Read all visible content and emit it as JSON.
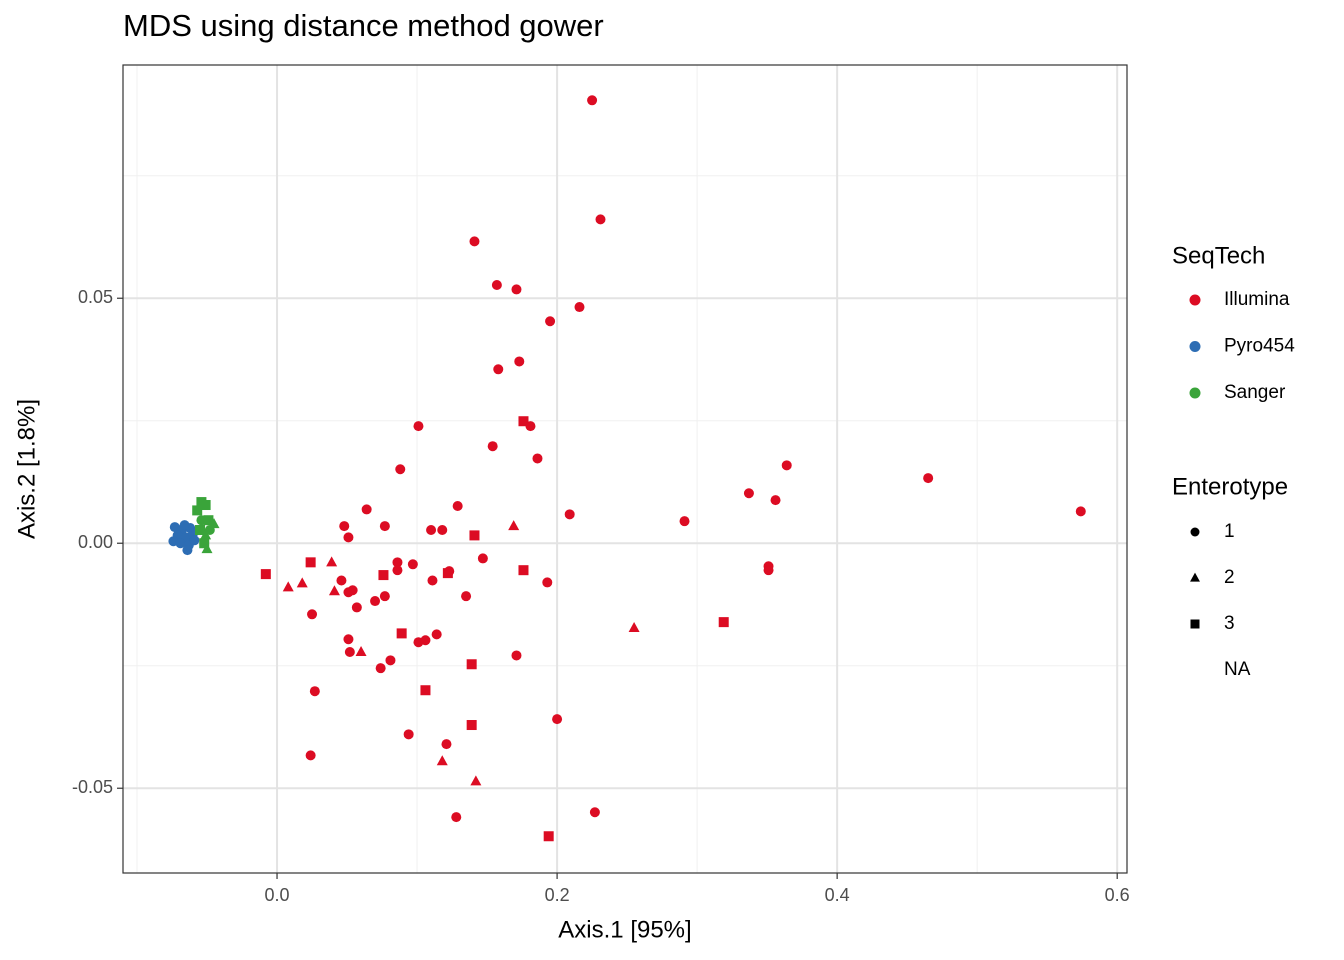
{
  "chart_data": {
    "type": "scatter",
    "title": "MDS using distance method gower",
    "x_label": "Axis.1   [95%]",
    "y_label": "Axis.2   [1.8%]",
    "xlim": [
      -0.11,
      0.607
    ],
    "ylim": [
      -0.0673,
      0.0976
    ],
    "xticks": [
      {
        "value": 0,
        "label": "0.0"
      },
      0.2,
      0.4,
      0.6
    ],
    "yticks": [
      -0.05,
      {
        "value": 0,
        "label": "0.00"
      },
      0.05
    ],
    "x_minor_grid": [
      -0.1,
      0.1,
      0.3,
      0.5
    ],
    "y_minor_grid": [
      -0.025,
      0.025,
      0.075
    ],
    "grid": true,
    "legend_title": "SeqTech",
    "shape_legend": {
      "title": "Enterotype",
      "labels": [
        "1",
        "2",
        "3",
        "NA"
      ],
      "shapes": [
        "circle",
        "triangle",
        "square",
        null
      ]
    },
    "series": [
      {
        "name": "Illumina",
        "color": "#dc0c23",
        "x": [
          0.225,
          0.231,
          0.141,
          0.157,
          0.171,
          0.216,
          0.195,
          0.173,
          0.158,
          0.101,
          0.181,
          0.154,
          0.186,
          0.088,
          0.465,
          0.364,
          0.337,
          0.356,
          0.129,
          0.064,
          0.209,
          0.291,
          0.048,
          0.077,
          0.11,
          0.118,
          0.051,
          0.097,
          0.086,
          0.086,
          0.147,
          0.123,
          0.351,
          0.351,
          0.111,
          0.046,
          0.054,
          0.051,
          0.193,
          0.077,
          0.07,
          0.135,
          0.057,
          0.025,
          0.574,
          0.051,
          0.114,
          0.106,
          0.101,
          0.052,
          0.081,
          0.171,
          0.074,
          0.027,
          0.2,
          0.094,
          0.121,
          0.024,
          0.227,
          0.128,
          0.169,
          0.039,
          0.018,
          0.008,
          0.041,
          0.06,
          0.255,
          0.118,
          0.142,
          0.176,
          0.141,
          0.024,
          -0.008,
          0.076,
          0.176,
          0.122,
          0.089,
          0.139,
          0.106,
          0.139,
          0.319,
          0.194
        ],
        "values": [
          0.0904,
          0.0661,
          0.0616,
          0.0527,
          0.0518,
          0.0482,
          0.0453,
          0.0371,
          0.0355,
          0.0239,
          0.0239,
          0.0198,
          0.0173,
          0.0151,
          0.0133,
          0.0159,
          0.0102,
          0.0088,
          0.0076,
          0.0069,
          0.0059,
          0.0045,
          0.0035,
          0.0035,
          0.0027,
          0.0027,
          0.0012,
          -0.0043,
          -0.0039,
          -0.0055,
          -0.0031,
          -0.0057,
          -0.0047,
          -0.0055,
          -0.0076,
          -0.0076,
          -0.0096,
          -0.01,
          -0.008,
          -0.0108,
          -0.0118,
          -0.0108,
          -0.0131,
          -0.0145,
          0.0065,
          -0.0196,
          -0.0186,
          -0.0198,
          -0.0202,
          -0.0222,
          -0.0239,
          -0.0229,
          -0.0255,
          -0.0302,
          -0.0359,
          -0.039,
          -0.041,
          -0.0433,
          -0.0549,
          -0.0559,
          0.0035,
          -0.0039,
          -0.0082,
          -0.009,
          -0.0098,
          -0.0222,
          -0.0173,
          -0.0445,
          -0.0486,
          0.0249,
          0.0016,
          -0.0039,
          -0.0063,
          -0.0065,
          -0.0055,
          -0.0061,
          -0.0184,
          -0.0247,
          -0.03,
          -0.0371,
          -0.0161,
          -0.0598
        ],
        "enterotype": [
          "1",
          "1",
          "1",
          "1",
          "1",
          "1",
          "1",
          "1",
          "1",
          "1",
          "1",
          "1",
          "1",
          "1",
          "1",
          "1",
          "1",
          "1",
          "1",
          "1",
          "1",
          "1",
          "1",
          "1",
          "1",
          "1",
          "1",
          "1",
          "1",
          "1",
          "1",
          "1",
          "1",
          "1",
          "1",
          "1",
          "1",
          "1",
          "1",
          "1",
          "1",
          "1",
          "1",
          "1",
          "1",
          "1",
          "1",
          "1",
          "1",
          "1",
          "1",
          "1",
          "1",
          "1",
          "1",
          "1",
          "1",
          "1",
          "1",
          "1",
          "2",
          "2",
          "2",
          "2",
          "2",
          "2",
          "2",
          "2",
          "2",
          "3",
          "3",
          "3",
          "3",
          "3",
          "3",
          "3",
          "3",
          "3",
          "3",
          "3",
          "3",
          "3"
        ]
      },
      {
        "name": "Pyro454",
        "color": "#2d6db4",
        "x": [
          -0.073,
          -0.068,
          -0.062,
          -0.071,
          -0.065,
          -0.06,
          -0.074,
          -0.069,
          -0.063,
          -0.064,
          -0.059,
          -0.066
        ],
        "values": [
          0.0033,
          0.0027,
          0.0031,
          0.0016,
          0.0012,
          0.002,
          0.0004,
          0.0,
          -0.0004,
          -0.0014,
          0.0006,
          0.0037
        ],
        "enterotype": [
          "1",
          "1",
          "1",
          "1",
          "1",
          "1",
          "1",
          "1",
          "1",
          "1",
          "1",
          "1"
        ]
      },
      {
        "name": "Sanger",
        "color": "#3aa43a",
        "x": [
          -0.054,
          -0.051,
          -0.057,
          -0.049,
          -0.055,
          -0.052,
          -0.045,
          -0.05,
          -0.051,
          -0.054,
          -0.048
        ],
        "values": [
          0.0084,
          0.0078,
          0.0067,
          0.0047,
          0.0027,
          0.0,
          0.0039,
          -0.0012,
          0.0016,
          0.0047,
          0.0027
        ],
        "enterotype": [
          "3",
          "3",
          "3",
          "3",
          "3",
          "3",
          "2",
          "2",
          "2",
          "1",
          "1"
        ]
      }
    ]
  }
}
